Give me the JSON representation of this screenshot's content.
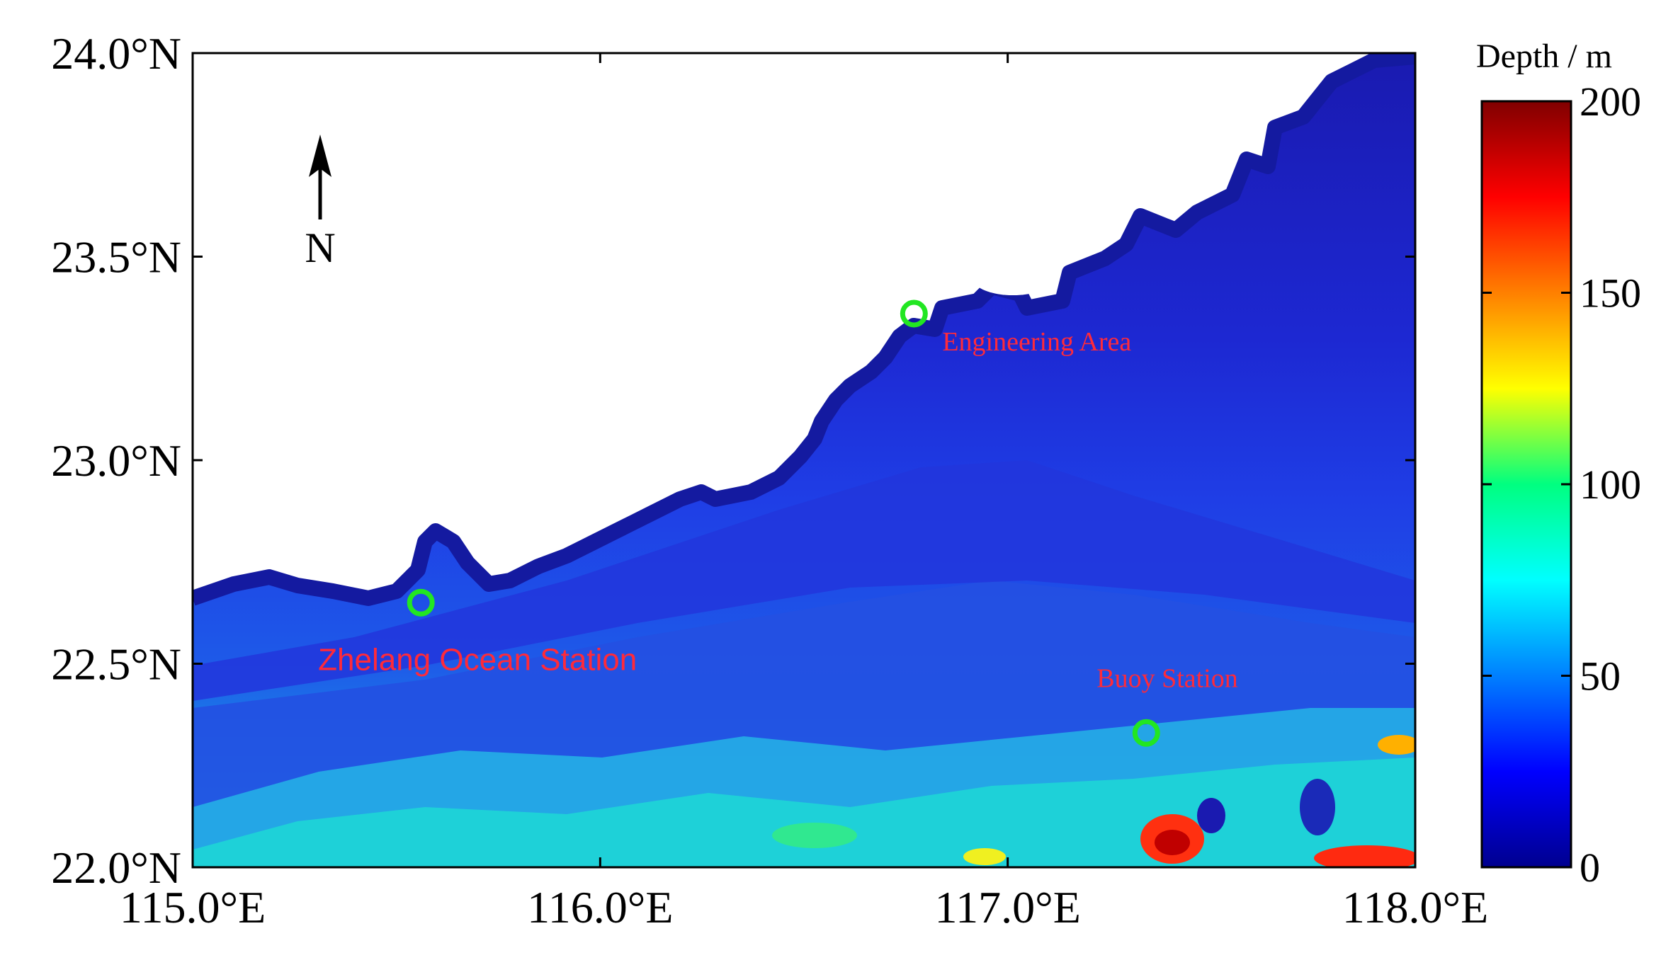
{
  "map": {
    "lon_range": [
      115.0,
      118.0
    ],
    "lat_range": [
      22.0,
      24.0
    ],
    "x_ticks": [
      {
        "value": 115.0,
        "label": "115.0°E"
      },
      {
        "value": 116.0,
        "label": "116.0°E"
      },
      {
        "value": 117.0,
        "label": "117.0°E"
      },
      {
        "value": 118.0,
        "label": "118.0°E"
      }
    ],
    "y_ticks": [
      {
        "value": 22.0,
        "label": "22.0°N"
      },
      {
        "value": 22.5,
        "label": "22.5°N"
      },
      {
        "value": 23.0,
        "label": "23.0°N"
      },
      {
        "value": 23.5,
        "label": "23.5°N"
      },
      {
        "value": 24.0,
        "label": "24.0°N"
      }
    ],
    "north_arrow_label": "N",
    "land_color": "#ffffff",
    "stations": [
      {
        "name": "Engineering Area",
        "lon": 116.77,
        "lat": 23.36,
        "marker_color": "#22e622"
      },
      {
        "name": "Zhelang Ocean Station",
        "lon": 115.56,
        "lat": 22.65,
        "marker_color": "#22e622"
      },
      {
        "name": "Buoy Station",
        "lon": 117.34,
        "lat": 22.33,
        "marker_color": "#22e622"
      }
    ]
  },
  "colorbar": {
    "title": "Depth / m",
    "min": 0,
    "max": 200,
    "ticks": [
      {
        "value": 0,
        "label": "0"
      },
      {
        "value": 50,
        "label": "50"
      },
      {
        "value": 100,
        "label": "100"
      },
      {
        "value": 150,
        "label": "150"
      },
      {
        "value": 200,
        "label": "200"
      }
    ],
    "colormap": "jet"
  }
}
